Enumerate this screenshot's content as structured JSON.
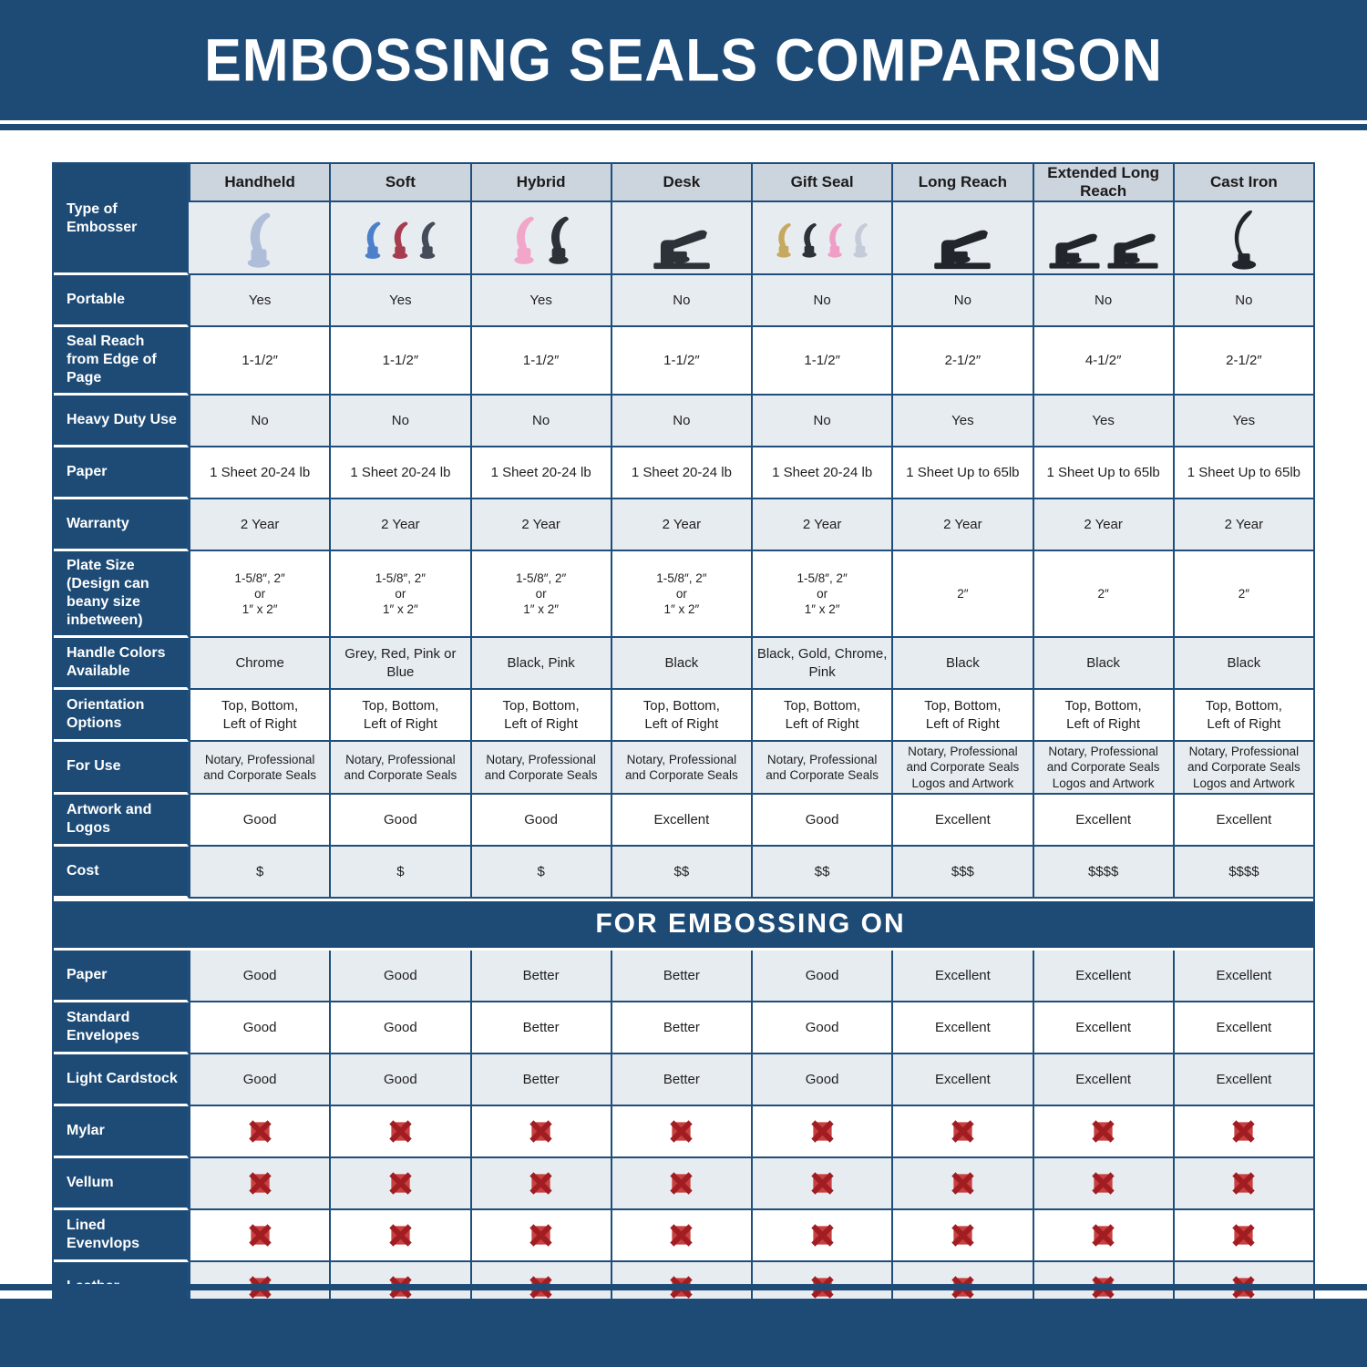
{
  "title": "EMBOSSING SEALS COMPARISON",
  "section_banner": "FOR EMBOSSING ON",
  "colors": {
    "banner_blue": "#1d4b76",
    "grid_border": "#1f4e7c",
    "column_header_bg": "#ccd4de",
    "row_light_bg": "#e7ecf1",
    "x_mark_dark_red": "#a21d22",
    "x_mark_light_red": "#c84040"
  },
  "type_row_label": "Type of Embosser",
  "columns": [
    "Handheld",
    "Soft",
    "Hybrid",
    "Desk",
    "Gift Seal",
    "Long Reach",
    "Extended Long Reach",
    "Cast Iron"
  ],
  "embosser_images": [
    {
      "icon": "handheld-embosser-icon",
      "kind": "plier",
      "colors": [
        "#aebdd8"
      ]
    },
    {
      "icon": "soft-embosser-icon",
      "kind": "plier",
      "colors": [
        "#4d7fcb",
        "#a63c4e",
        "#454b59"
      ]
    },
    {
      "icon": "hybrid-embosser-icon",
      "kind": "plier",
      "colors": [
        "#f2a6c9",
        "#2d3138"
      ]
    },
    {
      "icon": "desk-embosser-icon",
      "kind": "desk",
      "colors": [
        "#2d3138"
      ]
    },
    {
      "icon": "gift-seal-embosser-icon",
      "kind": "plier",
      "colors": [
        "#c6a95e",
        "#2d3138",
        "#ef9fc6",
        "#c5cbd8"
      ]
    },
    {
      "icon": "long-reach-embosser-icon",
      "kind": "desk",
      "colors": [
        "#22252b"
      ]
    },
    {
      "icon": "extended-long-reach-embosser-icon",
      "kind": "desk",
      "colors": [
        "#22252b",
        "#22252b"
      ]
    },
    {
      "icon": "cast-iron-embosser-icon",
      "kind": "cast",
      "colors": [
        "#22252b"
      ]
    }
  ],
  "spec_rows": [
    {
      "label": "Portable",
      "values": [
        "Yes",
        "Yes",
        "Yes",
        "No",
        "No",
        "No",
        "No",
        "No"
      ]
    },
    {
      "label": "Seal Reach from Edge of Page",
      "values": [
        "1-1/2″",
        "1-1/2″",
        "1-1/2″",
        "1-1/2″",
        "1-1/2″",
        "2-1/2″",
        "4-1/2″",
        "2-1/2″"
      ]
    },
    {
      "label": "Heavy Duty Use",
      "values": [
        "No",
        "No",
        "No",
        "No",
        "No",
        "Yes",
        "Yes",
        "Yes"
      ]
    },
    {
      "label": "Paper",
      "values": [
        "1 Sheet 20-24 lb",
        "1 Sheet 20-24 lb",
        "1 Sheet 20-24 lb",
        "1 Sheet 20-24 lb",
        "1 Sheet 20-24 lb",
        "1 Sheet Up to 65lb",
        "1 Sheet Up to 65lb",
        "1 Sheet Up to 65lb"
      ]
    },
    {
      "label": "Warranty",
      "values": [
        "2 Year",
        "2 Year",
        "2 Year",
        "2 Year",
        "2 Year",
        "2 Year",
        "2 Year",
        "2 Year"
      ]
    },
    {
      "label": "Plate Size (Design can beany size inbetween)",
      "small": true,
      "values": [
        "1-5/8″, 2″\nor\n1″ x 2″",
        "1-5/8″, 2″\nor\n1″ x 2″",
        "1-5/8″, 2″\nor\n1″ x 2″",
        "1-5/8″, 2″\nor\n1″ x 2″",
        "1-5/8″, 2″\nor\n1″ x 2″",
        "2″",
        "2″",
        "2″"
      ]
    },
    {
      "label": "Handle Colors Available",
      "values": [
        "Chrome",
        "Grey, Red, Pink or Blue",
        "Black, Pink",
        "Black",
        "Black, Gold, Chrome, Pink",
        "Black",
        "Black",
        "Black"
      ]
    },
    {
      "label": "Orientation Options",
      "values": [
        "Top, Bottom,\nLeft of Right",
        "Top, Bottom,\nLeft of Right",
        "Top, Bottom,\nLeft of Right",
        "Top, Bottom,\nLeft of Right",
        "Top, Bottom,\nLeft of Right",
        "Top, Bottom,\nLeft of Right",
        "Top, Bottom,\nLeft of Right",
        "Top, Bottom,\nLeft of Right"
      ]
    },
    {
      "label": "For Use",
      "small": true,
      "values": [
        "Notary, Professional\nand Corporate Seals",
        "Notary, Professional\nand Corporate Seals",
        "Notary, Professional\nand Corporate Seals",
        "Notary, Professional\nand Corporate Seals",
        "Notary, Professional\nand Corporate Seals",
        "Notary, Professional\nand Corporate Seals\nLogos and Artwork",
        "Notary, Professional\nand Corporate Seals\nLogos and Artwork",
        "Notary, Professional\nand Corporate Seals\nLogos and Artwork"
      ]
    },
    {
      "label": "Artwork and Logos",
      "values": [
        "Good",
        "Good",
        "Good",
        "Excellent",
        "Good",
        "Excellent",
        "Excellent",
        "Excellent"
      ]
    },
    {
      "label": "Cost",
      "values": [
        "$",
        "$",
        "$",
        "$$",
        "$$",
        "$$$",
        "$$$$",
        "$$$$"
      ]
    }
  ],
  "embossing_rows": [
    {
      "label": "Paper",
      "values": [
        "Good",
        "Good",
        "Better",
        "Better",
        "Good",
        "Excellent",
        "Excellent",
        "Excellent"
      ]
    },
    {
      "label": "Standard Envelopes",
      "values": [
        "Good",
        "Good",
        "Better",
        "Better",
        "Good",
        "Excellent",
        "Excellent",
        "Excellent"
      ]
    },
    {
      "label": "Light Cardstock",
      "values": [
        "Good",
        "Good",
        "Better",
        "Better",
        "Good",
        "Excellent",
        "Excellent",
        "Excellent"
      ]
    },
    {
      "label": "Mylar",
      "x_row": true
    },
    {
      "label": "Vellum",
      "x_row": true
    },
    {
      "label": "Lined Evenvlops",
      "x_row": true
    },
    {
      "label": "Leather",
      "x_row": true
    }
  ]
}
